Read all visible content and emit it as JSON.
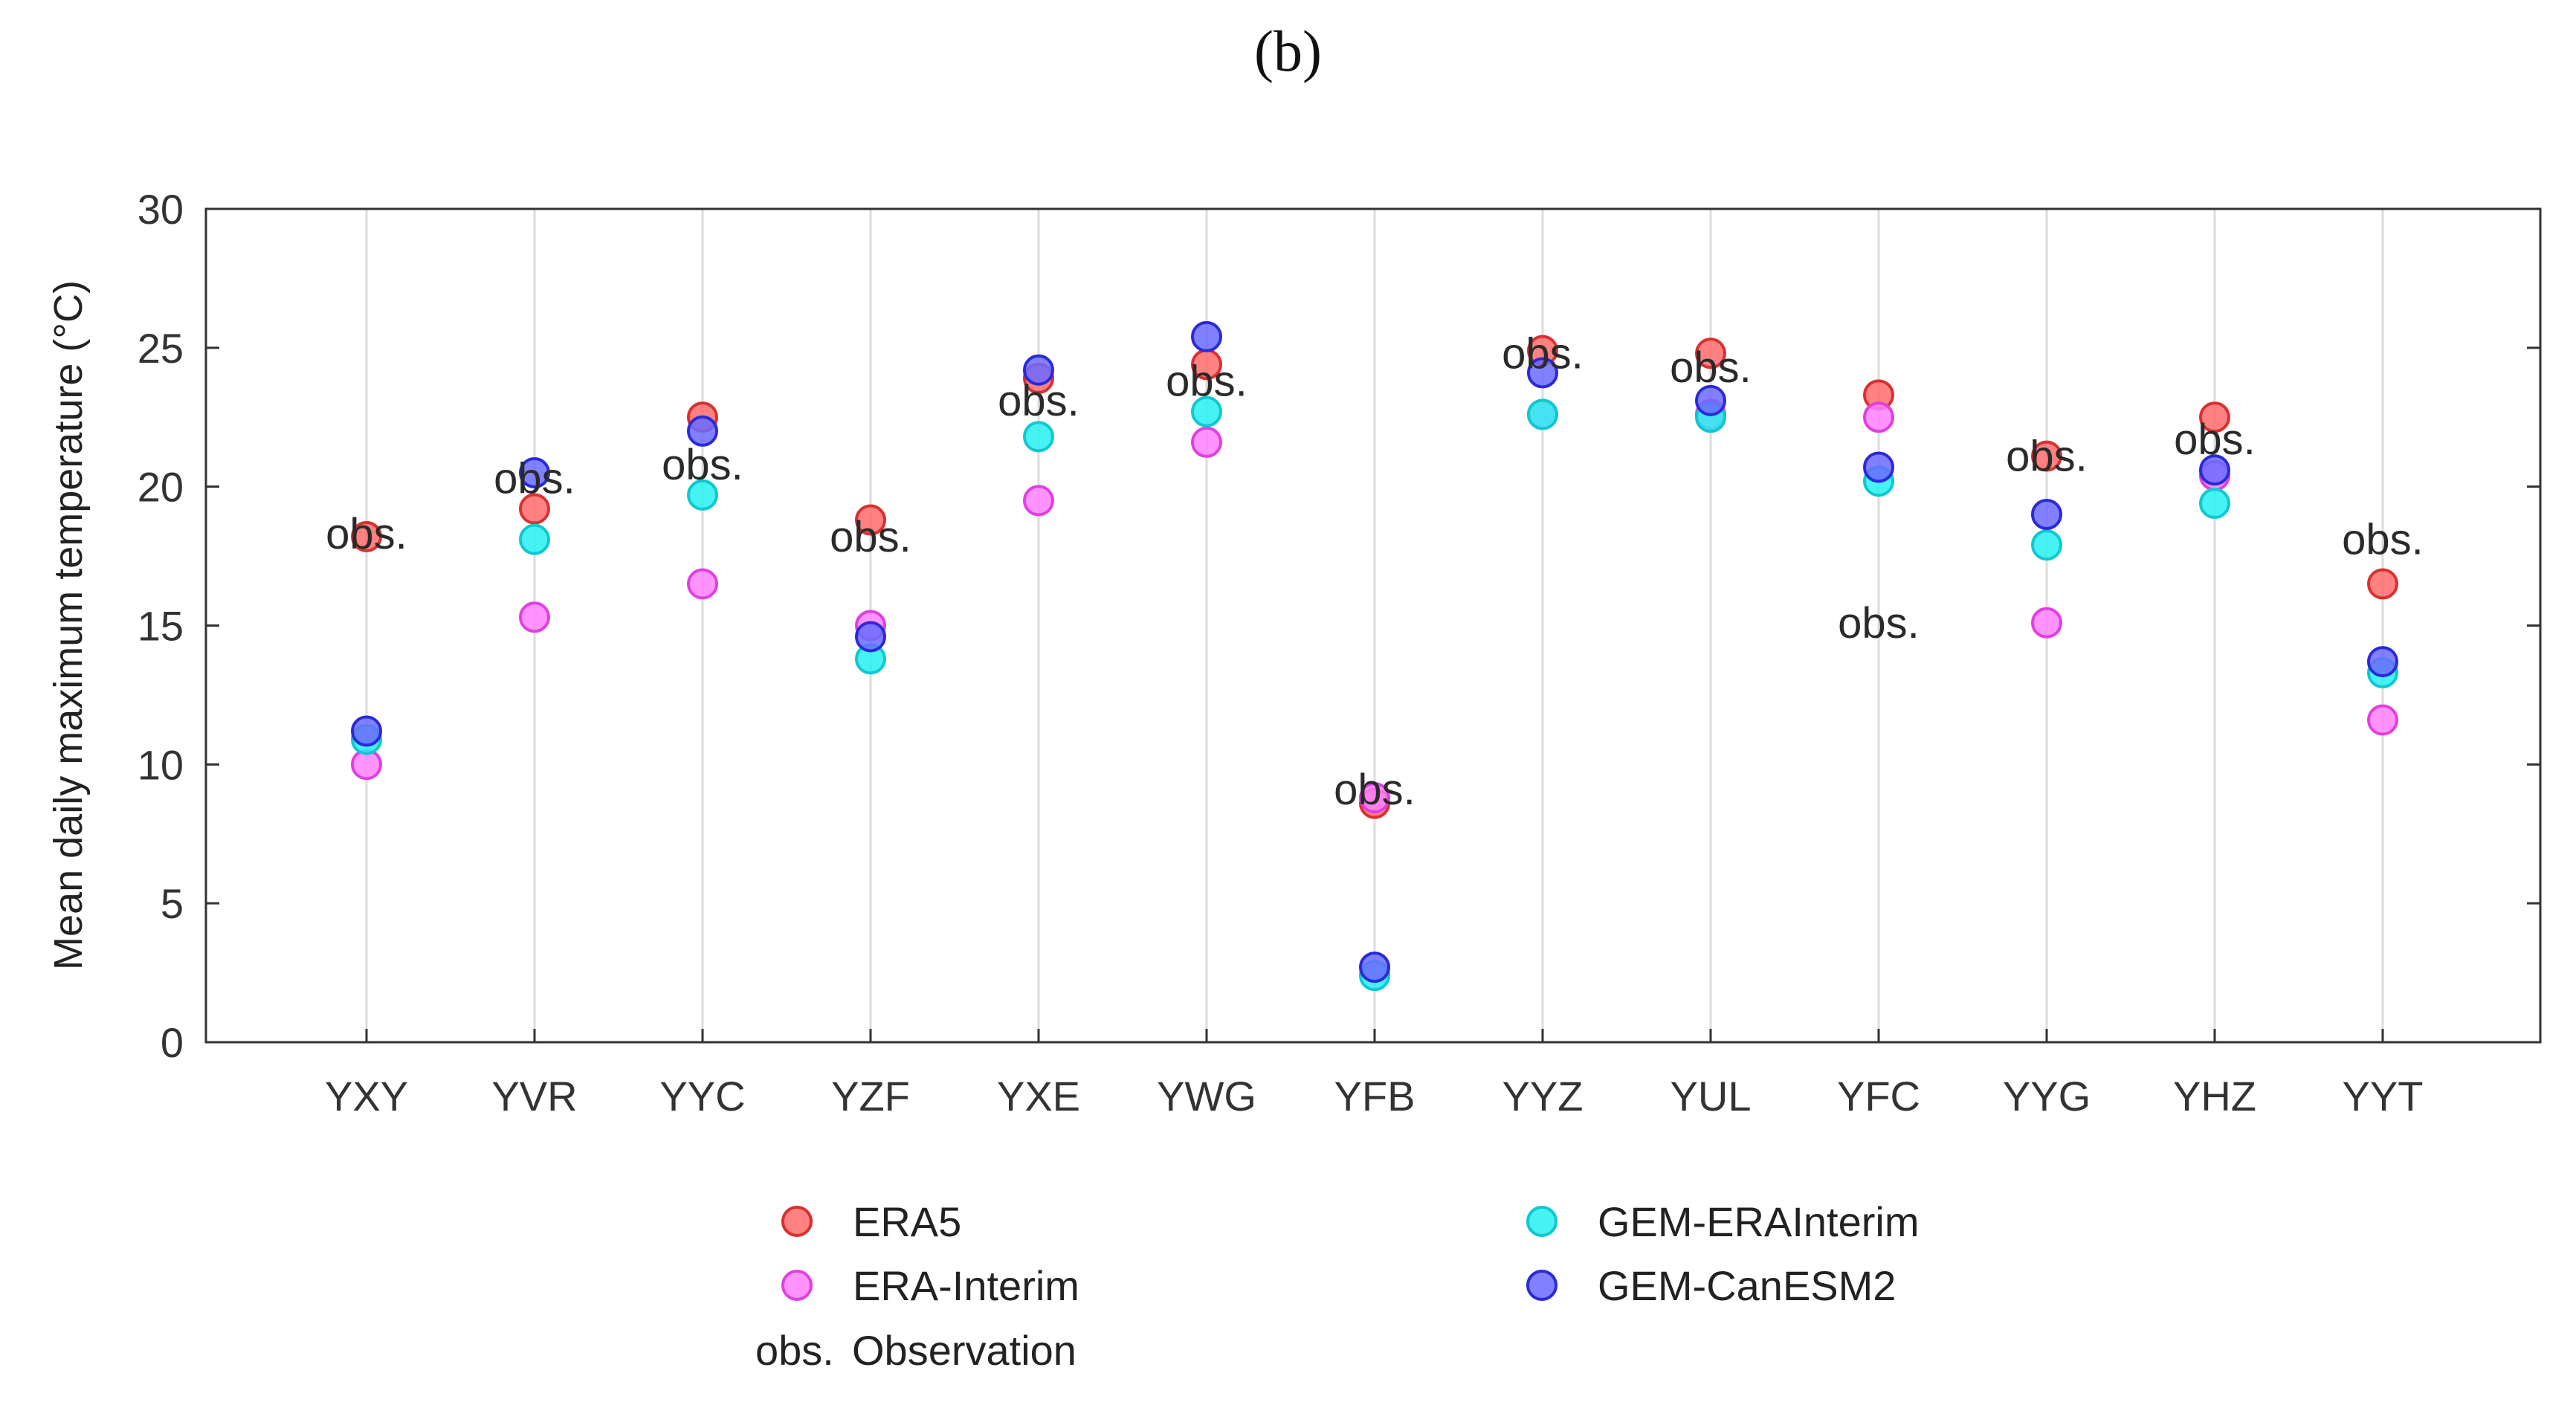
{
  "panel_label": "(b)",
  "chart_data": {
    "type": "scatter",
    "title": "",
    "xlabel": "",
    "ylabel": "Mean daily maximum temperature  (°C)",
    "ylim": [
      0,
      30
    ],
    "yticks": [
      0,
      5,
      10,
      15,
      20,
      25,
      30
    ],
    "grid": "vertical",
    "categories": [
      "YXY",
      "YVR",
      "YYC",
      "YZF",
      "YXE",
      "YWG",
      "YFB",
      "YYZ",
      "YUL",
      "YFC",
      "YYG",
      "YHZ",
      "YYT"
    ],
    "series": [
      {
        "name": "ERA5",
        "color": "#ff6b6b",
        "edge": "#d93030",
        "values": [
          18.2,
          19.2,
          22.5,
          18.8,
          23.9,
          24.4,
          8.6,
          24.9,
          24.8,
          23.3,
          21.1,
          22.5,
          16.5
        ]
      },
      {
        "name": "ERA-Interim",
        "color": "#ff80ff",
        "edge": "#e040e0",
        "values": [
          10.0,
          15.3,
          16.5,
          15.0,
          19.5,
          21.6,
          8.8,
          22.6,
          22.6,
          22.5,
          15.1,
          20.4,
          11.6
        ]
      },
      {
        "name": "GEM-ERAInterim",
        "color": "#26f0f0",
        "edge": "#10c8d0",
        "values": [
          10.9,
          18.1,
          19.7,
          13.8,
          21.8,
          22.7,
          2.4,
          22.6,
          22.5,
          20.2,
          17.9,
          19.4,
          13.3
        ]
      },
      {
        "name": "GEM-CanESM2",
        "color": "#6b6bff",
        "edge": "#2a2ad8",
        "values": [
          11.2,
          20.5,
          22.0,
          14.6,
          24.2,
          25.4,
          2.7,
          24.1,
          23.1,
          20.7,
          19.0,
          20.6,
          13.7
        ]
      }
    ],
    "observations": {
      "marker_text": "obs.",
      "values": [
        18.3,
        20.3,
        20.8,
        18.2,
        23.1,
        23.8,
        9.1,
        24.8,
        24.3,
        15.1,
        21.1,
        21.7,
        18.1
      ]
    },
    "legend": {
      "placement": "bottom",
      "entries": [
        "ERA5",
        "GEM-ERAInterim",
        "ERA-Interim",
        "GEM-CanESM2"
      ],
      "obs_marker": "obs.",
      "obs_label": "Observation"
    }
  }
}
